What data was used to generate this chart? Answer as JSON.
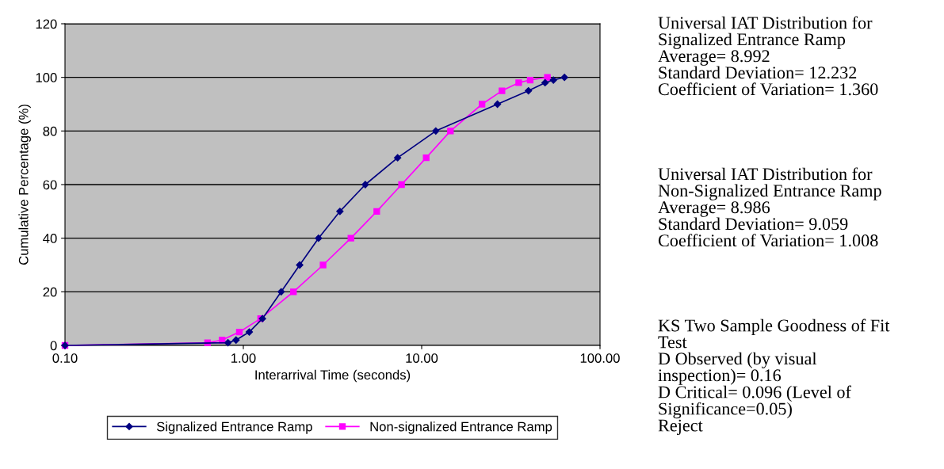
{
  "chart_data": {
    "type": "line",
    "xlabel": "Interarrival Time (seconds)",
    "ylabel": "Cumulative Percentage (%)",
    "log": "x",
    "xlim": [
      0.1,
      100
    ],
    "xticks": [
      {
        "value": 0.1,
        "label": "0.10"
      },
      {
        "value": 1,
        "label": "1.00"
      },
      {
        "value": 10,
        "label": "10.00"
      },
      {
        "value": 100,
        "label": "100.00"
      }
    ],
    "ylim": [
      0,
      120
    ],
    "yticks": [
      0,
      20,
      40,
      60,
      80,
      100,
      120
    ],
    "grid": "y",
    "legend": "bottom",
    "series": [
      {
        "name": "Signalized Entrance Ramp",
        "color": "#000080",
        "marker": "diamond",
        "x": [
          0.1,
          0.82,
          0.91,
          1.08,
          1.28,
          1.63,
          2.07,
          2.64,
          3.48,
          4.83,
          7.33,
          12.0,
          26.6,
          39.7,
          49.2,
          54.8,
          63.2
        ],
        "values": [
          0,
          1,
          2,
          5,
          10,
          20,
          30,
          40,
          50,
          60,
          70,
          80,
          90,
          95,
          98,
          99,
          100
        ]
      },
      {
        "name": "Non-signalized Entrance Ramp",
        "color": "#ff00ff",
        "marker": "square",
        "x": [
          0.1,
          0.63,
          0.76,
          0.95,
          1.25,
          1.91,
          2.8,
          4.01,
          5.6,
          7.71,
          10.6,
          14.5,
          21.8,
          28.2,
          35.0,
          40.6,
          50.7
        ],
        "values": [
          0,
          1,
          2,
          5,
          10,
          20,
          30,
          40,
          50,
          60,
          70,
          80,
          90,
          95,
          98,
          99,
          100
        ]
      }
    ],
    "annotations": [
      "Universal IAT Distribution for\nSignalized Entrance Ramp\nAverage= 8.992\nStandard Deviation= 12.232\nCoefficient of Variation= 1.360",
      "Universal IAT Distribution for\nNon-Signalized Entrance Ramp\nAverage= 8.986\nStandard Deviation= 9.059\nCoefficient of Variation= 1.008",
      "KS Two Sample Goodness of Fit\nTest\nD Observed (by visual\ninspection)= 0.16\nD Critical= 0.096 (Level of\nSignificance=0.05)\nReject"
    ]
  }
}
